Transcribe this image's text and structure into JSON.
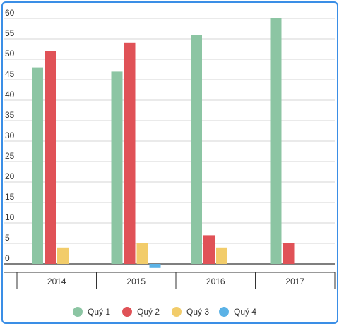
{
  "chart_data": {
    "type": "bar",
    "categories": [
      "2014",
      "2015",
      "2016",
      "2017"
    ],
    "series": [
      {
        "name": "Quý 1",
        "color": "#8cc5a3",
        "values": [
          48,
          47,
          56,
          60
        ]
      },
      {
        "name": "Quý 2",
        "color": "#e05257",
        "values": [
          52,
          54,
          7,
          5
        ]
      },
      {
        "name": "Quý 3",
        "color": "#f2cc6a",
        "values": [
          4,
          5,
          4,
          0
        ]
      },
      {
        "name": "Quý 4",
        "color": "#5bb2e6",
        "values": [
          0,
          -1,
          0,
          0
        ]
      }
    ],
    "yticks": [
      0,
      5,
      10,
      15,
      20,
      25,
      30,
      35,
      40,
      45,
      50,
      55,
      60
    ],
    "ylim": [
      0,
      60
    ],
    "grid": true,
    "legend_position": "bottom",
    "frame_color": "#3a8ee6"
  }
}
